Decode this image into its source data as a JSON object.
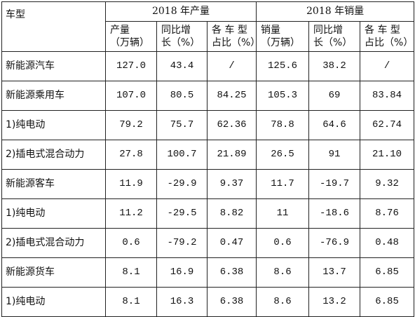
{
  "table": {
    "category_header": "车型",
    "groups": [
      "2018 年产量",
      "2018 年销量"
    ],
    "subheaders": [
      [
        "产量",
        "（万辆）"
      ],
      [
        "同比增",
        "长（%）"
      ],
      [
        "各 车 型",
        "占比（%）"
      ],
      [
        "销量",
        "（万辆）"
      ],
      [
        "同比增",
        "长（%）"
      ],
      [
        "各 车 型",
        "占比（%）"
      ]
    ],
    "rows": [
      {
        "label": "新能源汽车",
        "values": [
          "127.0",
          "43.4",
          "/",
          "125.6",
          "38.2",
          "/"
        ]
      },
      {
        "label": "新能源乘用车",
        "values": [
          "107.0",
          "80.5",
          "84.25",
          "105.3",
          "69",
          "83.84"
        ]
      },
      {
        "label": "1)纯电动",
        "values": [
          "79.2",
          "75.7",
          "62.36",
          "78.8",
          "64.6",
          "62.74"
        ]
      },
      {
        "label": "2)插电式混合动力",
        "values": [
          "27.8",
          "100.7",
          "21.89",
          "26.5",
          "91",
          "21.10"
        ]
      },
      {
        "label": "新能源客车",
        "values": [
          "11.9",
          "-29.9",
          "9.37",
          "11.7",
          "-19.7",
          "9.32"
        ]
      },
      {
        "label": "1)纯电动",
        "values": [
          "11.2",
          "-29.5",
          "8.82",
          "11",
          "-18.6",
          "8.76"
        ]
      },
      {
        "label": "2)插电式混合动力",
        "values": [
          "0.6",
          "-79.2",
          "0.47",
          "0.6",
          "-76.9",
          "0.48"
        ]
      },
      {
        "label": "新能源货车",
        "values": [
          "8.1",
          "16.9",
          "6.38",
          "8.6",
          "13.7",
          "6.85"
        ]
      },
      {
        "label": "1)纯电动",
        "values": [
          "8.1",
          "16.3",
          "6.38",
          "8.6",
          "13.2",
          "6.85"
        ]
      }
    ]
  }
}
